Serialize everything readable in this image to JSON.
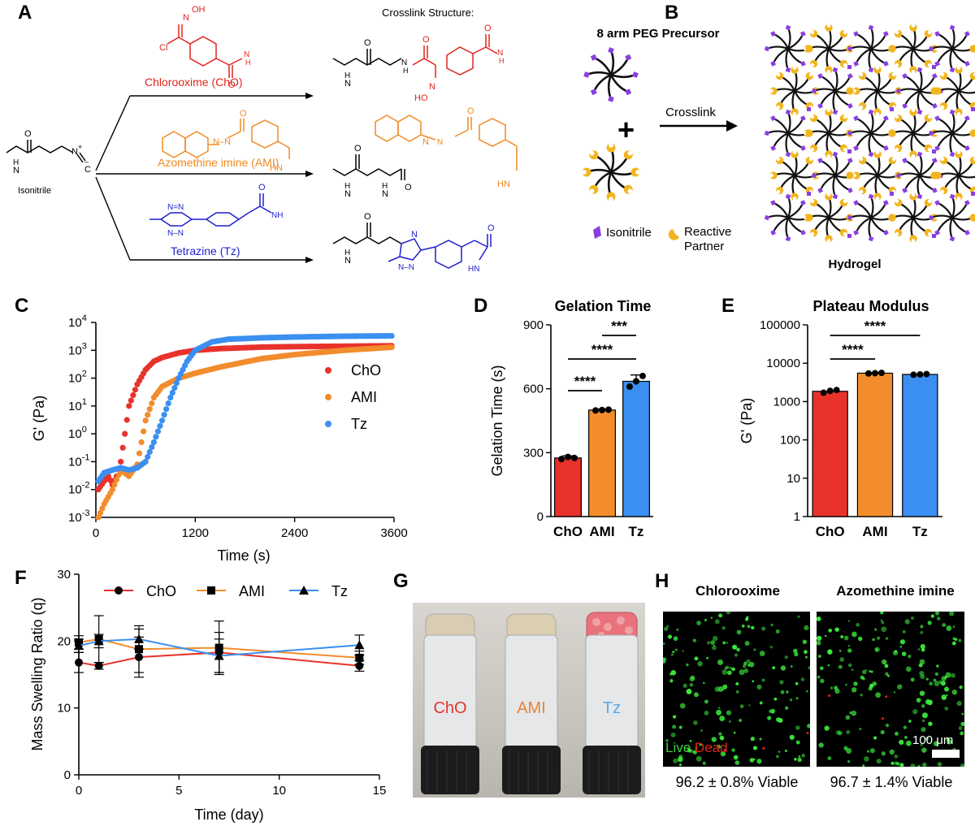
{
  "panels": {
    "A": "A",
    "B": "B",
    "C": "C",
    "D": "D",
    "E": "E",
    "F": "F",
    "G": "G",
    "H": "H"
  },
  "panelA": {
    "crosslink_title": "Crosslink Structure:",
    "isonitrile_label": "Isonitrile",
    "chloro_label": "Chlorooxime (ChO)",
    "ami_label": "Azomethine imine (AMI)",
    "tz_label": "Tetrazine (Tz)",
    "colors": {
      "cho": "#e0251b",
      "ami": "#f08a22",
      "tz": "#1f1fcf"
    }
  },
  "panelB": {
    "title": "8 arm PEG Precursor",
    "plus": "+",
    "arrow_label": "Crosslink",
    "legend_isonitrile": "Isonitrile",
    "legend_reactive_1": "Reactive",
    "legend_reactive_2": "Partner",
    "product": "Hydrogel",
    "colors": {
      "isonitrile": "#8a3fe0",
      "partner": "#f2b51f"
    }
  },
  "chart_data": [
    {
      "id": "C",
      "type": "scatter",
      "xlabel": "Time (s)",
      "ylabel": "G' (Pa)",
      "xlim": [
        0,
        3600
      ],
      "xticks": [
        "0",
        "1200",
        "2400",
        "3600"
      ],
      "ylim_log10": [
        -3,
        4
      ],
      "yticks": [
        "10-3",
        "10-2",
        "10-1",
        "100",
        "101",
        "102",
        "103",
        "104"
      ],
      "series": [
        {
          "name": "ChO",
          "color": "#e8322b",
          "x": [
            30,
            100,
            150,
            200,
            250,
            300,
            350,
            400,
            500,
            600,
            700,
            800,
            1000,
            1200,
            1500,
            2000,
            2400,
            3000,
            3600
          ],
          "y": [
            0.01,
            0.02,
            0.03,
            0.015,
            0.03,
            0.1,
            1,
            10,
            60,
            200,
            400,
            550,
            800,
            1000,
            1150,
            1300,
            1350,
            1400,
            1450
          ]
        },
        {
          "name": "AMI",
          "color": "#f28c2c",
          "x": [
            30,
            100,
            200,
            300,
            400,
            500,
            550,
            600,
            700,
            800,
            1000,
            1200,
            1500,
            2000,
            2400,
            3000,
            3600
          ],
          "y": [
            0.001,
            0.003,
            0.01,
            0.05,
            0.03,
            0.08,
            0.5,
            3,
            20,
            50,
            100,
            150,
            250,
            500,
            700,
            1000,
            1300
          ]
        },
        {
          "name": "Tz",
          "color": "#3b8ff0",
          "x": [
            30,
            100,
            200,
            300,
            400,
            500,
            600,
            700,
            800,
            900,
            1000,
            1100,
            1200,
            1400,
            1600,
            2000,
            2400,
            3000,
            3600
          ],
          "y": [
            0.02,
            0.04,
            0.05,
            0.06,
            0.05,
            0.06,
            0.1,
            0.5,
            3,
            20,
            100,
            400,
            1000,
            2000,
            2500,
            2800,
            3000,
            3200,
            3300
          ]
        }
      ]
    },
    {
      "id": "D",
      "type": "bar",
      "title": "Gelation Time",
      "ylabel": "Gelation Time (s)",
      "ylim": [
        0,
        900
      ],
      "yticks": [
        "0",
        "300",
        "600",
        "900"
      ],
      "categories": [
        "ChO",
        "AMI",
        "Tz"
      ],
      "values": [
        275,
        500,
        635
      ],
      "errors": [
        10,
        5,
        30
      ],
      "points": [
        [
          270,
          280,
          275
        ],
        [
          498,
          500,
          502
        ],
        [
          610,
          635,
          660
        ]
      ],
      "colors": [
        "#e8322b",
        "#f28c2c",
        "#3b8ff0"
      ],
      "significance": [
        {
          "from": 0,
          "to": 1,
          "label": "****"
        },
        {
          "from": 0,
          "to": 2,
          "label": "****"
        },
        {
          "from": 1,
          "to": 2,
          "label": "***"
        }
      ]
    },
    {
      "id": "E",
      "type": "bar",
      "title": "Plateau Modulus",
      "ylabel": "G' (Pa)",
      "ylim_log10": [
        0,
        5
      ],
      "yticks": [
        "1",
        "10",
        "100",
        "1000",
        "10000",
        "100000"
      ],
      "categories": [
        "ChO",
        "AMI",
        "Tz"
      ],
      "values": [
        1850,
        5500,
        5100
      ],
      "points": [
        [
          1700,
          1900,
          2000
        ],
        [
          5400,
          5500,
          5600
        ],
        [
          5000,
          5100,
          5200
        ]
      ],
      "colors": [
        "#e8322b",
        "#f28c2c",
        "#3b8ff0"
      ],
      "significance": [
        {
          "from": 0,
          "to": 1,
          "label": "****"
        },
        {
          "from": 0,
          "to": 2,
          "label": "****"
        }
      ]
    },
    {
      "id": "F",
      "type": "line",
      "xlabel": "Time (day)",
      "ylabel": "Mass Swelling Ratio (q)",
      "xlim": [
        0,
        15
      ],
      "xticks": [
        "0",
        "5",
        "10",
        "15"
      ],
      "ylim": [
        0,
        30
      ],
      "yticks": [
        "0",
        "10",
        "20",
        "30"
      ],
      "series": [
        {
          "name": "ChO",
          "color": "#e8322b",
          "marker": "circle",
          "x": [
            0,
            1,
            3,
            7,
            14
          ],
          "y": [
            16.8,
            16.3,
            17.6,
            18.3,
            16.3
          ],
          "err": [
            1.5,
            0.5,
            3,
            3,
            0.8
          ]
        },
        {
          "name": "AMI",
          "color": "#f28c2c",
          "marker": "square",
          "x": [
            0,
            1,
            3,
            7,
            14
          ],
          "y": [
            19.8,
            20.3,
            18.8,
            19.0,
            17.5
          ],
          "err": [
            1,
            3.5,
            3.5,
            4,
            1
          ]
        },
        {
          "name": "Tz",
          "color": "#3b8ff0",
          "marker": "triangle",
          "x": [
            0,
            1,
            3,
            7,
            14
          ],
          "y": [
            19.3,
            20.0,
            20.3,
            17.8,
            19.4
          ],
          "err": [
            1,
            1,
            1.5,
            2.5,
            1.5
          ]
        }
      ]
    }
  ],
  "panelG": {
    "vial1": "ChO",
    "vial2": "AMI",
    "vial3": "Tz"
  },
  "panelH": {
    "title1": "Chlorooxime",
    "title2": "Azomethine imine",
    "live": "Live",
    "dead": "Dead",
    "scale": "100 μm",
    "caption1": "96.2 ± 0.8% Viable",
    "caption2": "96.7 ± 1.4% Viable"
  }
}
